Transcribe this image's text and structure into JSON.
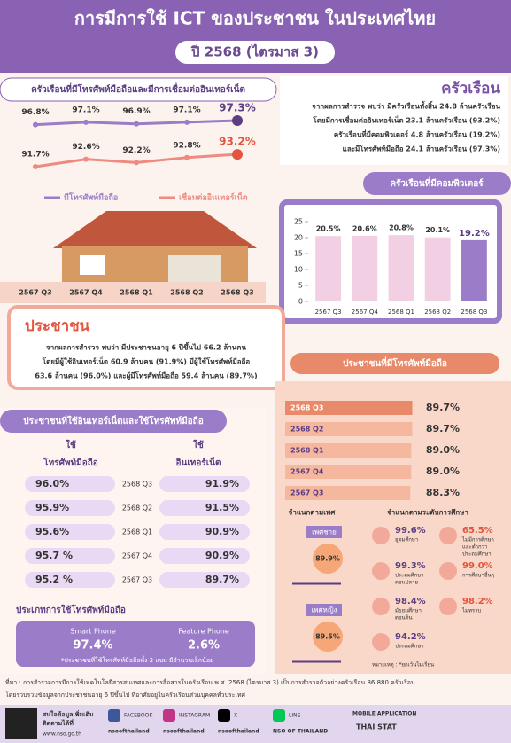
{
  "header": {
    "title": "การมีการใช้ ICT ของประชาชน ในประเทศไทย",
    "subtitle": "ปี 2568 (ไตรมาส 3)"
  },
  "chart_data": [
    {
      "type": "line",
      "title": "ครัวเรือนที่มีโทรศัพท์มือถือและมีการเชื่อมต่ออินเทอร์เน็ต",
      "categories": [
        "2567 Q3",
        "2567 Q4",
        "2568 Q1",
        "2568 Q2",
        "2568 Q3"
      ],
      "series": [
        {
          "name": "มีโทรศัพท์มือถือ",
          "color": "#9b7cc8",
          "values": [
            96.8,
            97.1,
            96.9,
            97.1,
            97.3
          ],
          "value_labels": [
            "96.8%",
            "97.1%",
            "96.9%",
            "97.1%",
            "97.3%"
          ]
        },
        {
          "name": "เชื่อมต่ออินเทอร์เน็ต",
          "color": "#ee8a80",
          "values": [
            91.7,
            92.6,
            92.2,
            92.8,
            93.2
          ],
          "value_labels": [
            "91.7%",
            "92.6%",
            "92.2%",
            "92.8%",
            "93.2%"
          ]
        }
      ]
    },
    {
      "type": "bar",
      "title": "ครัวเรือนที่มีคอมพิวเตอร์",
      "categories": [
        "2567 Q3",
        "2567 Q4",
        "2568 Q1",
        "2568 Q2",
        "2568 Q3"
      ],
      "values": [
        20.5,
        20.6,
        20.8,
        20.1,
        19.2
      ],
      "value_labels": [
        "20.5%",
        "20.6%",
        "20.8%",
        "20.1%",
        "19.2%"
      ],
      "color": "#f3cfe3",
      "ylim": [
        0,
        25
      ],
      "yticks": [
        0,
        5,
        10,
        15,
        20,
        25
      ]
    },
    {
      "type": "hbar",
      "title": "ประชาชนที่มีโทรศัพท์มือถือ",
      "categories": [
        "2568 Q3",
        "2568 Q2",
        "2568 Q1",
        "2567 Q4",
        "2567 Q3"
      ],
      "values": [
        89.7,
        89.7,
        89.0,
        89.0,
        88.3
      ],
      "value_labels": [
        "89.7%",
        "89.7%",
        "89.0%",
        "89.0%",
        "88.3%"
      ],
      "color": "#e8896a"
    }
  ],
  "household": {
    "title": "ครัวเรือน",
    "lines": [
      "จากผลการสำรวจ พบว่า มีครัวเรือนทั้งสิ้น 24.8 ล้านครัวเรือน",
      "โดยมีการเชื่อมต่ออินเทอร์เน็ต 23.1 ล้านครัวเรือน (93.2%)",
      "ครัวเรือนที่มีคอมพิวเตอร์ 4.8 ล้านครัวเรือน (19.2%)",
      "และมีโทรศัพท์มือถือ 24.1 ล้านครัวเรือน (97.3%)"
    ]
  },
  "population": {
    "title": "ประชาชน",
    "lines": [
      "จากผลการสำรวจ พบว่า มีประชาชนอายุ 6 ปีขึ้นไป 66.2 ล้านคน",
      "โดยมีผู้ใช้อินเทอร์เน็ต 60.9 ล้านคน (91.9%) มีผู้ใช้โทรศัพท์มือถือ",
      "63.6 ล้านคน (96.0%) และผู้มีโทรศัพท์มือถือ 59.4 ล้านคน (89.7%)"
    ]
  },
  "usage_table": {
    "title": "ประชาชนที่ใช้อินเทอร์เน็ตและใช้โทรศัพท์มือถือ",
    "headers": [
      [
        "ใช้",
        "โทรศัพท์มือถือ"
      ],
      [
        "ใช้",
        "อินเทอร์เน็ต"
      ]
    ],
    "rows": [
      [
        "96.0%",
        "2568 Q3",
        "91.9%"
      ],
      [
        "95.9%",
        "2568 Q2",
        "91.5%"
      ],
      [
        "95.6%",
        "2568 Q1",
        "90.9%"
      ],
      [
        "95.7 %",
        "2567 Q4",
        "90.9%"
      ],
      [
        "95.2 %",
        "2567 Q3",
        "89.7%"
      ]
    ]
  },
  "phone_types": {
    "title": "ประเภทการใช้โทรศัพท์มือถือ",
    "items": [
      {
        "label": "Smart Phone",
        "value": "97.4%"
      },
      {
        "label": "Feature Phone",
        "value": "2.6%"
      }
    ],
    "note": "*ประชาชนที่ใช้โทรศัพท์มือถือทั้ง 2 แบบ มีจำนวนเล็กน้อย"
  },
  "gender": {
    "title": "จำแนกตามเพศ",
    "items": [
      {
        "label": "เพศชาย",
        "value": "89.9%"
      },
      {
        "label": "เพศหญิง",
        "value": "89.5%"
      }
    ]
  },
  "education": {
    "title": "จำแนกตามระดับการศึกษา",
    "items": [
      {
        "value": "99.6%",
        "label": [
          "อุดมศึกษา"
        ]
      },
      {
        "value": "65.5%",
        "label": [
          "ไม่มีการศึกษา",
          "และต่ำกว่า",
          "ประถมศึกษา"
        ]
      },
      {
        "value": "99.3%",
        "label": [
          "ประถมศึกษา",
          "ตอนปลาย"
        ]
      },
      {
        "value": "99.0%",
        "label": [
          "การศึกษาอื่นๆ"
        ]
      },
      {
        "value": "98.4%",
        "label": [
          "มัธยมศึกษา",
          "ตอนต้น"
        ]
      },
      {
        "value": "98.2%",
        "label": [
          "ไม่ทราบ"
        ]
      },
      {
        "value": "94.2%",
        "label": [
          "ประถมศึกษา"
        ]
      }
    ],
    "note": "หมายเหตุ : *ยกเว้นไม่เรียน"
  },
  "source": [
    "ที่มา : การสำรวจการมีการใช้เทคโนโลยีสารสนเทศและการสื่อสารในครัวเรือน พ.ศ. 2568 (ไตรมาส 3) เป็นการสำรวจตัวอย่างครัวเรือน 86,880 ครัวเรือน",
    "โดยรวบรวมข้อมูลจากประชาชนอายุ 6 ปีขึ้นไป ที่อาศัยอยู่ในครัวเรือนส่วนบุคคลทั่วประเทศ"
  ],
  "footer": {
    "follow": [
      "สนใจข้อมูลเพิ่มเติม",
      "ติดตามได้ที่"
    ],
    "website": "www.nso.go.th",
    "socials": [
      {
        "label": "FACEBOOK",
        "handle": "nsoofthailand"
      },
      {
        "label": "INSTAGRAM",
        "handle": "nsoofthailand"
      },
      {
        "label": "X",
        "handle": "nsoofthailand"
      },
      {
        "label": "LINE",
        "handle": "NSO OF THAILAND"
      }
    ],
    "app": [
      "MOBILE APPLICATION",
      "THAI STAT"
    ]
  }
}
